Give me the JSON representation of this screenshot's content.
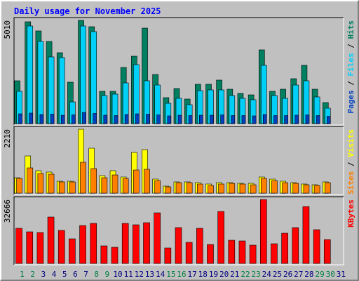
{
  "chart_data": [
    {
      "type": "bar",
      "title": "Daily usage for November 2025",
      "categories": [
        "1",
        "2",
        "3",
        "4",
        "5",
        "6",
        "7",
        "8",
        "9",
        "10",
        "11",
        "12",
        "13",
        "14",
        "15",
        "16",
        "17",
        "18",
        "19",
        "20",
        "21",
        "22",
        "23",
        "24",
        "25",
        "26",
        "27",
        "28",
        "29",
        "30",
        "31"
      ],
      "x_label_colors": [
        "#008040",
        "#008040",
        "#000080",
        "#000080",
        "#000080",
        "#000080",
        "#000080",
        "#008040",
        "#008040",
        "#000080",
        "#000080",
        "#000080",
        "#000080",
        "#000080",
        "#008040",
        "#008040",
        "#000080",
        "#000080",
        "#000080",
        "#000080",
        "#000080",
        "#008040",
        "#008040",
        "#000080",
        "#000080",
        "#000080",
        "#000080",
        "#000080",
        "#008040",
        "#008040",
        "#000080"
      ],
      "legend_separator": " / ",
      "ylim": [
        0,
        5010
      ],
      "yticks": [
        5010
      ],
      "series": [
        {
          "name": "Hits",
          "color": "#008060",
          "values": [
            2079,
            4942,
            4499,
            3988,
            3442,
            2011,
            5010,
            4703,
            1568,
            1568,
            2727,
            3272,
            4635,
            2386,
            1261,
            1704,
            1193,
            1909,
            1909,
            2113,
            1670,
            1466,
            1397,
            3579,
            1568,
            1670,
            2181,
            2829,
            1670,
            1022,
            null
          ]
        },
        {
          "name": "Files",
          "color": "#00d0f8",
          "values": [
            1568,
            4737,
            3988,
            3238,
            3204,
            1056,
            4737,
            4465,
            1363,
            1431,
            1977,
            2863,
            2079,
            1874,
            988,
            1227,
            920,
            1602,
            1636,
            1636,
            1363,
            1227,
            1159,
            2829,
            1363,
            1227,
            1874,
            2079,
            1295,
            750,
            null
          ]
        },
        {
          "name": "Pages",
          "color": "#0040c0",
          "values": [
            477,
            511,
            443,
            460,
            409,
            426,
            545,
            494,
            409,
            392,
            443,
            477,
            460,
            426,
            375,
            409,
            392,
            409,
            409,
            426,
            392,
            392,
            375,
            443,
            392,
            392,
            409,
            426,
            392,
            358,
            null
          ]
        }
      ]
    },
    {
      "type": "bar",
      "ylim": [
        0,
        2210
      ],
      "yticks": [
        2210
      ],
      "series": [
        {
          "name": "Visits",
          "color": "#ffff00",
          "values": [
            534,
            1287,
            777,
            729,
            413,
            413,
            2210,
            1554,
            607,
            777,
            559,
            1409,
            1506,
            486,
            243,
            389,
            389,
            364,
            316,
            364,
            364,
            340,
            340,
            559,
            486,
            413,
            364,
            316,
            291,
            389,
            null
          ]
        },
        {
          "name": "Sites",
          "color": "#ff8000",
          "values": [
            510,
            874,
            680,
            656,
            389,
            389,
            1069,
            850,
            534,
            631,
            510,
            801,
            826,
            437,
            219,
            364,
            364,
            316,
            267,
            316,
            340,
            316,
            291,
            510,
            437,
            364,
            340,
            291,
            267,
            364,
            null
          ]
        }
      ]
    },
    {
      "type": "bar",
      "ylim": [
        0,
        32666
      ],
      "yticks": [
        32666
      ],
      "series": [
        {
          "name": "KBytes",
          "color": "#ff0000",
          "values": [
            17948,
            16154,
            15795,
            23693,
            16872,
            12564,
            19385,
            20462,
            8975,
            8257,
            20462,
            19744,
            20821,
            25847,
            7898,
            18308,
            10770,
            17949,
            9693,
            26565,
            11847,
            11488,
            9334,
            32666,
            10052,
            15436,
            18308,
            29078,
            17231,
            12206,
            null
          ]
        }
      ]
    }
  ]
}
